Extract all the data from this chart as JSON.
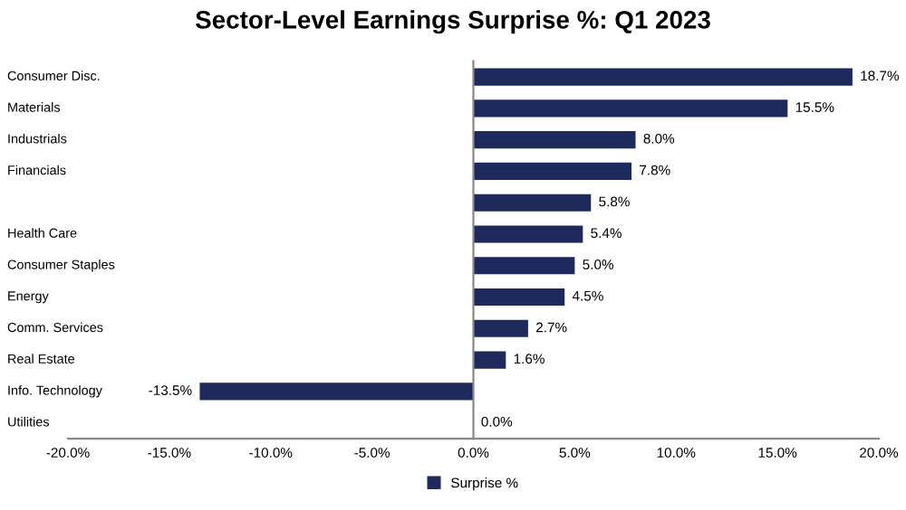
{
  "chart_data": {
    "type": "bar",
    "orientation": "horizontal",
    "title": "Sector-Level Earnings Surprise %: Q1 2023",
    "categories": [
      "Consumer Disc.",
      "Materials",
      "Industrials",
      "Financials",
      null,
      "Health Care",
      "Consumer Staples",
      "Energy",
      "Comm. Services",
      "Real Estate",
      "Info. Technology",
      "Utilities"
    ],
    "series": [
      {
        "name": "Surprise %",
        "color": "#1f2a5c",
        "values": [
          18.7,
          15.5,
          8.0,
          7.8,
          5.8,
          5.4,
          5.0,
          4.5,
          2.7,
          1.6,
          -13.5,
          0.0
        ],
        "value_labels": [
          "18.7%",
          "15.5%",
          "8.0%",
          "7.8%",
          "5.8%",
          "5.4%",
          "5.0%",
          "4.5%",
          "2.7%",
          "1.6%",
          "-13.5%",
          "0.0%"
        ]
      }
    ],
    "xlim": [
      -20,
      20
    ],
    "xticks": [
      {
        "value": -20,
        "label": "-20.0%"
      },
      {
        "value": -15,
        "label": "-15.0%"
      },
      {
        "value": -10,
        "label": "-10.0%"
      },
      {
        "value": -5,
        "label": "-5.0%"
      },
      {
        "value": 0,
        "label": "0.0%"
      },
      {
        "value": 5,
        "label": "5.0%"
      },
      {
        "value": 10,
        "label": "10.0%"
      },
      {
        "value": 15,
        "label": "15.0%"
      },
      {
        "value": 20,
        "label": "20.0%"
      }
    ],
    "legend": "bottom"
  }
}
